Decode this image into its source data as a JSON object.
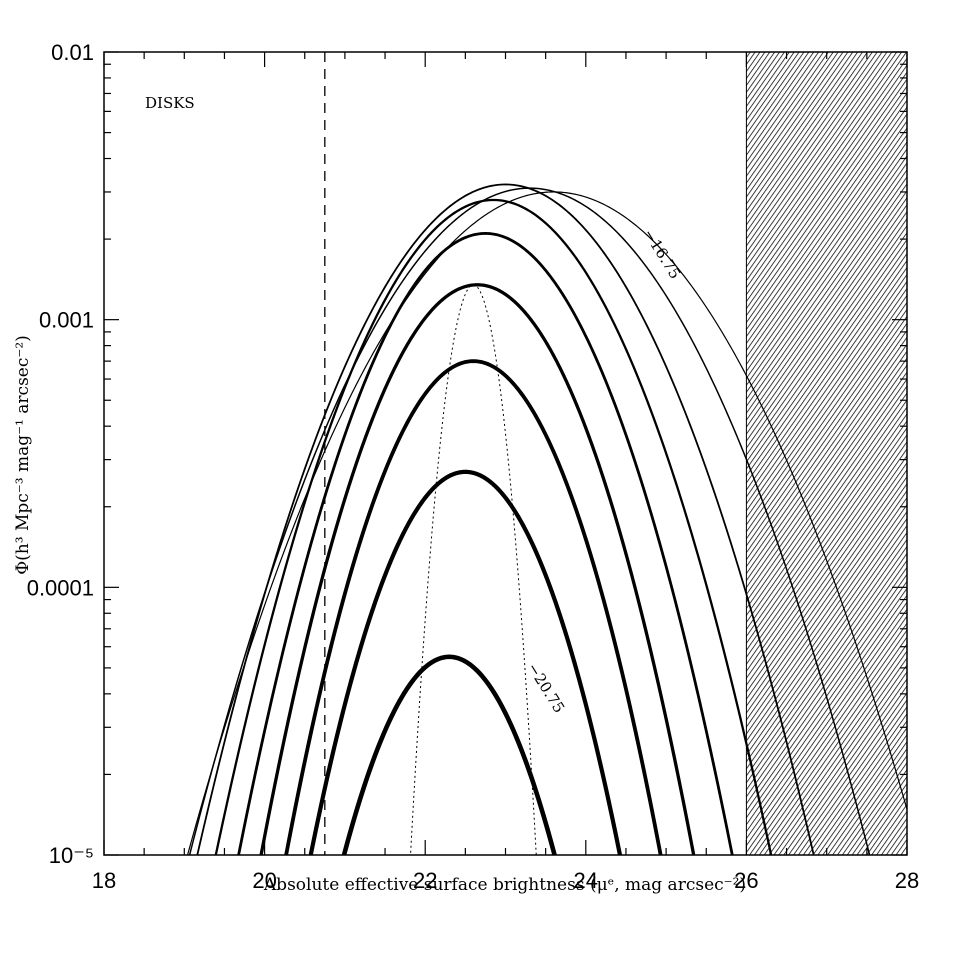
{
  "chart_data": {
    "type": "line",
    "title": "",
    "xlabel": "Absolute effective surface brightness (μᵉ, mag arcsec⁻²)",
    "ylabel": "Φ(h³ Mpc⁻³ mag⁻¹ arcsec⁻²)",
    "xlim": [
      18,
      28
    ],
    "ylim": [
      1e-05,
      0.01
    ],
    "y_scale": "log",
    "x_ticks": [
      "18",
      "20",
      "22",
      "24",
      "26",
      "28"
    ],
    "y_ticks": [
      {
        "value": 0.01,
        "label": "0.01"
      },
      {
        "value": 0.001,
        "label": "0.001"
      },
      {
        "value": 0.0001,
        "label": "0.0001"
      },
      {
        "value": 1e-05,
        "label": "10⁻⁵"
      }
    ],
    "grid": false,
    "legend": "none",
    "annotations": {
      "panel_label": "DISKS",
      "faint_curve_label": "−16.75",
      "bright_curve_label": "−20.75"
    },
    "vertical_dashed_line_x": 20.75,
    "hatched_region_x": [
      26,
      28
    ],
    "series": [
      {
        "peak_x": 23.6,
        "peak_y": 0.003,
        "sigma": 1.35,
        "stroke": 1.2
      },
      {
        "peak_x": 23.3,
        "peak_y": 0.0031,
        "sigma": 1.25,
        "stroke": 1.5
      },
      {
        "peak_x": 23.0,
        "peak_y": 0.0032,
        "sigma": 1.13,
        "stroke": 1.8
      },
      {
        "peak_x": 22.85,
        "peak_y": 0.0028,
        "sigma": 1.03,
        "stroke": 2.3
      },
      {
        "peak_x": 22.75,
        "peak_y": 0.0021,
        "sigma": 0.94,
        "stroke": 2.8
      },
      {
        "peak_x": 22.65,
        "peak_y": 0.00135,
        "sigma": 0.86,
        "stroke": 3.3
      },
      {
        "peak_x": 22.6,
        "peak_y": 0.0007,
        "sigma": 0.8,
        "stroke": 3.8
      },
      {
        "peak_x": 22.5,
        "peak_y": 0.00027,
        "sigma": 0.75,
        "stroke": 4.2
      },
      {
        "peak_x": 22.3,
        "peak_y": 5.5e-05,
        "sigma": 0.71,
        "stroke": 4.6
      },
      {
        "peak_x": 22.6,
        "peak_y": 0.00135,
        "sigma": 0.25,
        "stroke": 1.0,
        "dotted": true
      }
    ]
  }
}
